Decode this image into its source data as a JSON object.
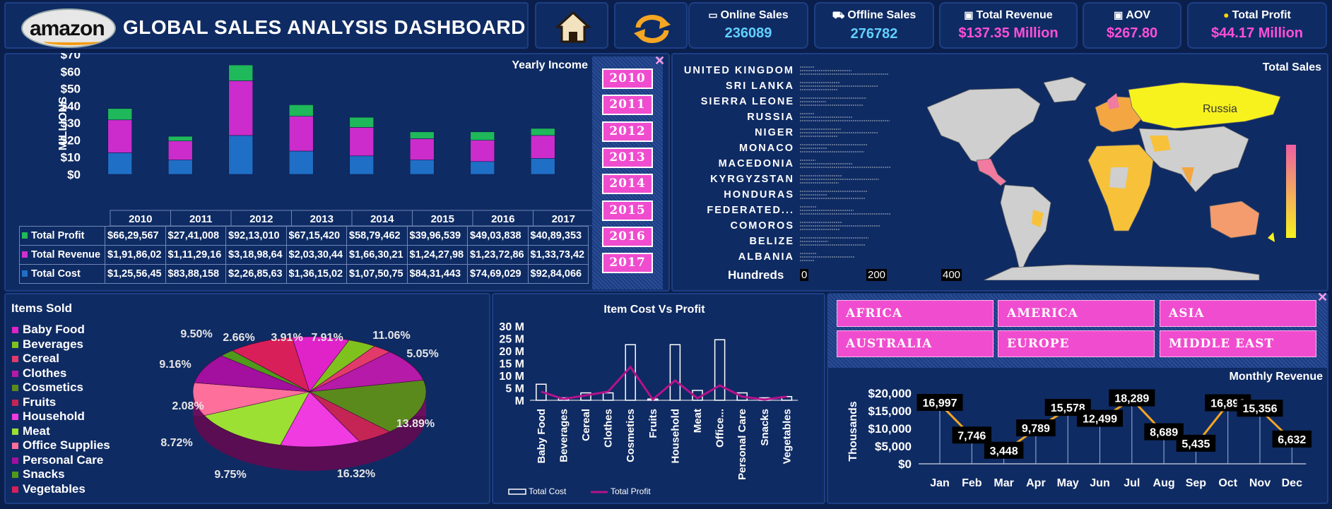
{
  "header": {
    "logo_text": "amazon",
    "title": "GLOBAL SALES ANALYSIS DASHBOARD"
  },
  "kpis": [
    {
      "label": "Online Sales",
      "value": "236089",
      "icon": "monitor-icon",
      "color": "#62d0ff"
    },
    {
      "label": "Offline Sales",
      "value": "276782",
      "icon": "cart-icon",
      "color": "#62d0ff"
    },
    {
      "label": "Total Revenue",
      "value": "$137.35 Million",
      "icon": "cash-icon",
      "color": "#ff4fd8"
    },
    {
      "label": "AOV",
      "value": "$267.80",
      "icon": "cash-icon",
      "color": "#ff4fd8"
    },
    {
      "label": "Total Profit",
      "value": "$44.17 Million",
      "icon": "coins-icon",
      "color": "#ff4fd8"
    }
  ],
  "yearly": {
    "title": "Yearly Income",
    "ylabel": "MILLIONS",
    "y_ticks": [
      "$0",
      "$10",
      "$20",
      "$30",
      "$40",
      "$50",
      "$60",
      "$70"
    ],
    "rows": [
      {
        "label": "Total Profit",
        "color": "#1fb85a",
        "values": [
          "$66,29,567",
          "$27,41,008",
          "$92,13,010",
          "$67,15,420",
          "$58,79,462",
          "$39,96,539",
          "$49,03,838",
          "$40,89,353"
        ]
      },
      {
        "label": "Total Revenue",
        "color": "#d12fd0",
        "values": [
          "$1,91,86,02",
          "$1,11,29,16",
          "$3,18,98,64",
          "$2,03,30,44",
          "$1,66,30,21",
          "$1,24,27,98",
          "$1,23,72,86",
          "$1,33,73,42"
        ]
      },
      {
        "label": "Total Cost",
        "color": "#1f6fc6",
        "values": [
          "$1,25,56,45",
          "$83,88,158",
          "$2,26,85,63",
          "$1,36,15,02",
          "$1,07,50,75",
          "$84,31,443",
          "$74,69,029",
          "$92,84,066"
        ]
      }
    ],
    "slicer": [
      "2010",
      "2011",
      "2012",
      "2013",
      "2014",
      "2015",
      "2016",
      "2017"
    ]
  },
  "sales_map": {
    "title": "Total Sales",
    "countries": [
      "UNITED KINGDOM",
      "SRI LANKA",
      "SIERRA LEONE",
      "RUSSIA",
      "NIGER",
      "MONACO",
      "MACEDONIA",
      "KYRGYZSTAN",
      "HONDURAS",
      "FEDERATED...",
      "COMOROS",
      "BELIZE",
      "ALBANIA"
    ],
    "axis_label": "Hundreds",
    "axis_ticks": [
      "0",
      "200",
      "400"
    ],
    "map_label": "Russia"
  },
  "items_sold": {
    "title": "Items Sold",
    "legend": [
      {
        "label": "Baby Food",
        "color": "#e022c9"
      },
      {
        "label": "Beverages",
        "color": "#7fc21e"
      },
      {
        "label": "Cereal",
        "color": "#e23a6a"
      },
      {
        "label": "Clothes",
        "color": "#b51aa8"
      },
      {
        "label": "Cosmetics",
        "color": "#5a8a1c"
      },
      {
        "label": "Fruits",
        "color": "#c42555"
      },
      {
        "label": "Household",
        "color": "#ef3be0"
      },
      {
        "label": "Meat",
        "color": "#9ce033"
      },
      {
        "label": "Office Supplies",
        "color": "#ff6f9c"
      },
      {
        "label": "Personal Care",
        "color": "#a30f9e"
      },
      {
        "label": "Snacks",
        "color": "#4f9a1a"
      },
      {
        "label": "Vegetables",
        "color": "#d81f5a"
      }
    ],
    "pie_labels": [
      "9.50%",
      "2.66%",
      "3.91%",
      "7.91%",
      "11.06%",
      "5.05%",
      "13.89%",
      "16.32%",
      "9.75%",
      "8.72%",
      "2.08%",
      "9.16%"
    ]
  },
  "chart_data": [
    {
      "type": "bar",
      "title": "Yearly Income",
      "ylabel": "MILLIONS",
      "categories": [
        "2010",
        "2011",
        "2012",
        "2013",
        "2014",
        "2015",
        "2016",
        "2017"
      ],
      "ylim": [
        0,
        70
      ],
      "series": [
        {
          "name": "Total Cost",
          "values": [
            12.6,
            8.4,
            22.7,
            13.6,
            10.8,
            8.4,
            7.5,
            9.3
          ]
        },
        {
          "name": "Total Revenue",
          "values": [
            19.2,
            11.1,
            31.9,
            20.3,
            16.6,
            12.4,
            12.4,
            13.4
          ]
        },
        {
          "name": "Total Profit",
          "values": [
            6.6,
            2.7,
            9.2,
            6.7,
            5.9,
            4.0,
            4.9,
            4.1
          ]
        }
      ]
    },
    {
      "type": "bar",
      "title": "Total Sales",
      "xlabel": "Hundreds",
      "categories": [
        "UNITED KINGDOM",
        "SRI LANKA",
        "SIERRA LEONE",
        "RUSSIA",
        "NIGER",
        "MONACO",
        "MACEDONIA",
        "KYRGYZSTAN",
        "HONDURAS",
        "FEDERATED...",
        "COMOROS",
        "BELIZE",
        "ALBANIA"
      ],
      "xlim": [
        0,
        400
      ]
    },
    {
      "type": "pie",
      "title": "Items Sold",
      "categories": [
        "Baby Food",
        "Beverages",
        "Cereal",
        "Clothes",
        "Cosmetics",
        "Fruits",
        "Household",
        "Meat",
        "Office Supplies",
        "Personal Care",
        "Snacks",
        "Vegetables"
      ],
      "values": [
        7.91,
        3.91,
        2.66,
        9.5,
        16.32,
        5.05,
        11.06,
        13.89,
        9.75,
        8.72,
        2.08,
        9.16
      ]
    },
    {
      "type": "bar",
      "title": "Item Cost Vs Profit",
      "categories": [
        "Baby Food",
        "Beverages",
        "Cereal",
        "Clothes",
        "Cosmetics",
        "Fruits",
        "Household",
        "Meat",
        "Office...",
        "Personal Care",
        "Snacks",
        "Vegetables"
      ],
      "y_ticks": [
        "M",
        "5 M",
        "10 M",
        "15 M",
        "20 M",
        "25 M",
        "30 M"
      ],
      "ylim": [
        0,
        30
      ],
      "series": [
        {
          "name": "Total Cost",
          "values": [
            6.5,
            1.0,
            3.0,
            3.0,
            22.5,
            0.5,
            22.5,
            4.0,
            24.5,
            3.0,
            1.0,
            1.5
          ]
        },
        {
          "name": "Total Profit",
          "values": [
            3.5,
            0.5,
            2.0,
            3.5,
            13.5,
            0.3,
            8.0,
            0.8,
            6.0,
            1.5,
            0.3,
            1.5
          ]
        }
      ]
    },
    {
      "type": "line",
      "title": "Monthly Revenue",
      "ylabel": "Thousands",
      "categories": [
        "Jan",
        "Feb",
        "Mar",
        "Apr",
        "May",
        "Jun",
        "Jul",
        "Aug",
        "Sep",
        "Oct",
        "Nov",
        "Dec"
      ],
      "values": [
        16997,
        7746,
        3448,
        9789,
        15578,
        12499,
        18289,
        8689,
        5435,
        16896,
        15356,
        6632
      ],
      "data_labels": [
        "16,997",
        "7,746",
        "3,448",
        "9,789",
        "15,578",
        "12,499",
        "18,289",
        "8,689",
        "5,435",
        "16,896",
        "15,356",
        "6,632"
      ],
      "y_ticks": [
        "$0",
        "$5,000",
        "$10,000",
        "$15,000",
        "$20,000"
      ],
      "ylim": [
        0,
        20000
      ]
    }
  ],
  "cost_chart": {
    "title": "Item Cost Vs Profit",
    "legend_cost": "Total Cost",
    "legend_profit": "Total Profit"
  },
  "regions": [
    "AFRICA",
    "AMERICA",
    "ASIA",
    "AUSTRALIA",
    "EUROPE",
    "MIDDLE EAST"
  ],
  "monthly": {
    "title": "Monthly Revenue",
    "ylabel": "Thousands"
  },
  "colors": {
    "bg": "#0b1f4d",
    "panel": "#0f2b63",
    "accent": "#f04ccf",
    "line": "#f5a623"
  }
}
